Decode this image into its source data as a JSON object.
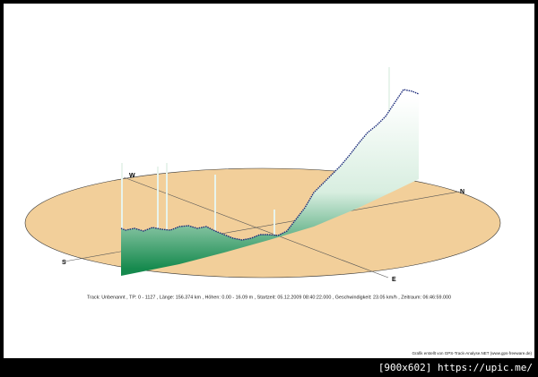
{
  "compass": {
    "west": "W",
    "north": "N",
    "south": "S",
    "east": "E"
  },
  "info": "Track: Unbenannt  ,  TP: 0 - 1127  ,  Länge: 156.374 km  ,  Höhen: 0.00 - 16.09 m  ,  Startzeit: 05.12.2009 08:40:22.000  ,  Geschwindigkeit: 23.05 km/h  ,  Zeitraum: 06:46:59.000",
  "credit": "Grafik erstellt von GPS-Track-Analyse.NET (www.gps-freeware.de)",
  "watermark": "[900x602] https://upic.me/"
}
